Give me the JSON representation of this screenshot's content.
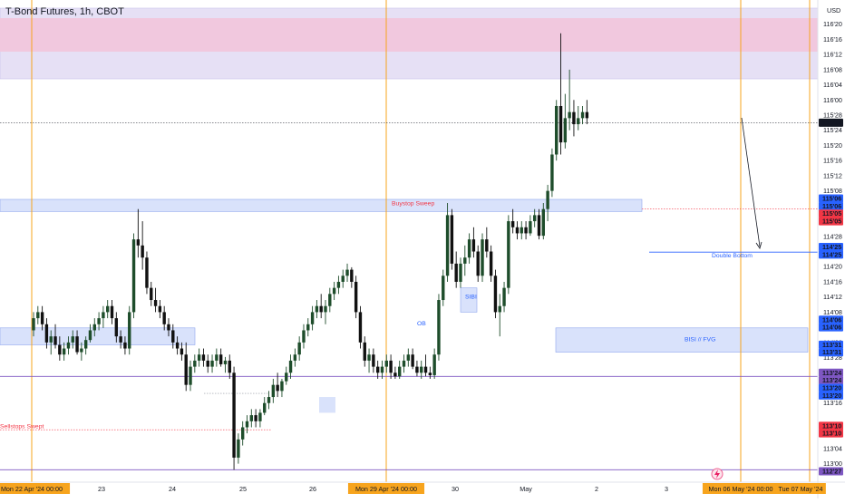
{
  "colors": {
    "up": "#1e4d2b",
    "down": "#111111",
    "session_line": "#f7a41d",
    "supply_zone_fill": "#f1c8de",
    "supply_zone_outer": "#e6e0f5",
    "blue_zone": "#d9e2fb",
    "blue_zone_edge": "#8fa6ee",
    "purple_line": "#7e57c2",
    "red_dotted": "#f23645",
    "label_blue": "#2962ff",
    "label_red": "#f23645",
    "label_purple": "#7e57c2",
    "label_black": "#131722",
    "x_label_orange": "#f7a41d"
  },
  "chart_data": {
    "type": "candlestick",
    "title": "T-Bond Futures, 1h, CBOT",
    "currency": "USD",
    "y_unit": "price in 32nds",
    "ylim": [
      112.9,
      116.675
    ],
    "y_ticks": [
      {
        "v": 116.625,
        "label": "116'20"
      },
      {
        "v": 116.5,
        "label": "116'16"
      },
      {
        "v": 116.375,
        "label": "116'12"
      },
      {
        "v": 116.25,
        "label": "116'08"
      },
      {
        "v": 116.125,
        "label": "116'04"
      },
      {
        "v": 116.0,
        "label": "116'00"
      },
      {
        "v": 115.875,
        "label": "115'28"
      },
      {
        "v": 115.75,
        "label": "115'24"
      },
      {
        "v": 115.625,
        "label": "115'20"
      },
      {
        "v": 115.5,
        "label": "115'16"
      },
      {
        "v": 115.375,
        "label": "115'12"
      },
      {
        "v": 115.25,
        "label": "115'08"
      },
      {
        "v": 114.875,
        "label": "114'28"
      },
      {
        "v": 114.625,
        "label": "114'20"
      },
      {
        "v": 114.5,
        "label": "114'16"
      },
      {
        "v": 114.375,
        "label": "114'12"
      },
      {
        "v": 114.25,
        "label": "114'08"
      },
      {
        "v": 114.0,
        "label": "114'00"
      },
      {
        "v": 113.875,
        "label": "113'28"
      },
      {
        "v": 113.5,
        "label": "113'16"
      },
      {
        "v": 113.25,
        "label": "113'08"
      },
      {
        "v": 113.125,
        "label": "113'04"
      },
      {
        "v": 113.0,
        "label": "113'00"
      }
    ],
    "price_labels": [
      {
        "v": 115.8125,
        "label": "115'26",
        "style": "black"
      },
      {
        "v": 115.1875,
        "label": "115'06",
        "style": "blue"
      },
      {
        "v": 115.125,
        "label": "115'06",
        "style": "blue"
      },
      {
        "v": 115.0625,
        "label": "115'05",
        "style": "red"
      },
      {
        "v": 115.0,
        "label": "115'05",
        "style": "red"
      },
      {
        "v": 114.7875,
        "label": "114'25",
        "style": "blue"
      },
      {
        "v": 114.725,
        "label": "114'25",
        "style": "blue"
      },
      {
        "v": 114.1875,
        "label": "114'06",
        "style": "blue"
      },
      {
        "v": 114.125,
        "label": "114'06",
        "style": "blue"
      },
      {
        "v": 113.9812,
        "label": "113'31",
        "style": "blue"
      },
      {
        "v": 113.9187,
        "label": "113'31",
        "style": "blue"
      },
      {
        "v": 113.75,
        "label": "113'24",
        "style": "purple"
      },
      {
        "v": 113.6875,
        "label": "113'24",
        "style": "purple"
      },
      {
        "v": 113.625,
        "label": "113'20",
        "style": "blue"
      },
      {
        "v": 113.5625,
        "label": "113'20",
        "style": "blue"
      },
      {
        "v": 113.3125,
        "label": "113'10",
        "style": "red"
      },
      {
        "v": 113.25,
        "label": "113'10",
        "style": "red"
      },
      {
        "v": 112.9375,
        "label": "112'27",
        "style": "purple"
      }
    ],
    "x_ticks": [
      {
        "label": "Mon 22 Apr '24   00:00",
        "x": 0,
        "highlight": true
      },
      {
        "label": "23",
        "x": 16
      },
      {
        "label": "24",
        "x": 32
      },
      {
        "label": "25",
        "x": 48
      },
      {
        "label": "26",
        "x": 64
      },
      {
        "label": "Mon 29 Apr '24   00:00",
        "x": 80,
        "highlight": true
      },
      {
        "label": "30",
        "x": 96
      },
      {
        "label": "May",
        "x": 112
      },
      {
        "label": "2",
        "x": 128
      },
      {
        "label": "3",
        "x": 144
      },
      {
        "label": "Mon 06 May '24   00:00",
        "x": 160,
        "highlight": true
      },
      {
        "label": "Tue 07 May '24",
        "x": 176,
        "highlight": true
      }
    ],
    "session_lines": [
      0,
      80,
      160,
      176
    ],
    "candles": [
      [
        114.1,
        114.25,
        114.05,
        114.2
      ],
      [
        114.2,
        114.3,
        114.15,
        114.25
      ],
      [
        114.25,
        114.3,
        114.1,
        114.15
      ],
      [
        114.15,
        114.2,
        113.95,
        114.0
      ],
      [
        114.0,
        114.1,
        113.9,
        114.05
      ],
      [
        114.05,
        114.15,
        113.95,
        113.98
      ],
      [
        113.98,
        114.05,
        113.85,
        113.9
      ],
      [
        113.9,
        114.0,
        113.85,
        113.95
      ],
      [
        113.95,
        114.05,
        113.9,
        114.0
      ],
      [
        114.0,
        114.1,
        113.95,
        114.05
      ],
      [
        114.05,
        114.1,
        113.9,
        113.92
      ],
      [
        113.92,
        114.0,
        113.85,
        113.95
      ],
      [
        113.95,
        114.05,
        113.9,
        114.02
      ],
      [
        114.02,
        114.15,
        114.0,
        114.1
      ],
      [
        114.1,
        114.2,
        114.05,
        114.15
      ],
      [
        114.15,
        114.25,
        114.1,
        114.2
      ],
      [
        114.2,
        114.3,
        114.12,
        114.25
      ],
      [
        114.25,
        114.35,
        114.2,
        114.3
      ],
      [
        114.3,
        114.35,
        114.15,
        114.2
      ],
      [
        114.2,
        114.25,
        114.0,
        114.05
      ],
      [
        114.05,
        114.1,
        113.95,
        114.0
      ],
      [
        114.0,
        114.05,
        113.9,
        113.95
      ],
      [
        113.95,
        114.3,
        113.9,
        114.25
      ],
      [
        114.25,
        114.9,
        114.2,
        114.85
      ],
      [
        114.85,
        115.1,
        114.7,
        114.8
      ],
      [
        114.8,
        115.0,
        114.6,
        114.7
      ],
      [
        114.7,
        114.75,
        114.4,
        114.45
      ],
      [
        114.45,
        114.5,
        114.3,
        114.35
      ],
      [
        114.35,
        114.45,
        114.25,
        114.3
      ],
      [
        114.3,
        114.35,
        114.2,
        114.25
      ],
      [
        114.25,
        114.3,
        114.1,
        114.15
      ],
      [
        114.15,
        114.2,
        114.05,
        114.1
      ],
      [
        114.1,
        114.15,
        113.95,
        114.0
      ],
      [
        114.0,
        114.05,
        113.9,
        113.95
      ],
      [
        113.95,
        114.0,
        113.85,
        113.9
      ],
      [
        113.9,
        114.0,
        113.6,
        113.65
      ],
      [
        113.65,
        113.85,
        113.6,
        113.8
      ],
      [
        113.8,
        113.9,
        113.75,
        113.85
      ],
      [
        113.85,
        113.95,
        113.8,
        113.9
      ],
      [
        113.9,
        113.95,
        113.8,
        113.85
      ],
      [
        113.85,
        113.9,
        113.75,
        113.8
      ],
      [
        113.8,
        113.9,
        113.75,
        113.85
      ],
      [
        113.85,
        113.95,
        113.8,
        113.9
      ],
      [
        113.9,
        113.95,
        113.8,
        113.82
      ],
      [
        113.82,
        113.88,
        113.75,
        113.85
      ],
      [
        113.85,
        113.9,
        113.7,
        113.75
      ],
      [
        113.75,
        113.8,
        112.95,
        113.05
      ],
      [
        113.05,
        113.25,
        113.0,
        113.2
      ],
      [
        113.2,
        113.35,
        113.15,
        113.3
      ],
      [
        113.3,
        113.4,
        113.25,
        113.35
      ],
      [
        113.35,
        113.45,
        113.3,
        113.4
      ],
      [
        113.4,
        113.45,
        113.3,
        113.35
      ],
      [
        113.35,
        113.45,
        113.3,
        113.42
      ],
      [
        113.42,
        113.55,
        113.4,
        113.5
      ],
      [
        113.5,
        113.6,
        113.45,
        113.55
      ],
      [
        113.55,
        113.7,
        113.5,
        113.65
      ],
      [
        113.65,
        113.75,
        113.55,
        113.6
      ],
      [
        113.6,
        113.7,
        113.55,
        113.68
      ],
      [
        113.68,
        113.8,
        113.65,
        113.75
      ],
      [
        113.75,
        113.9,
        113.7,
        113.85
      ],
      [
        113.85,
        113.95,
        113.8,
        113.9
      ],
      [
        113.9,
        114.05,
        113.85,
        114.0
      ],
      [
        114.0,
        114.15,
        113.95,
        114.1
      ],
      [
        114.1,
        114.2,
        114.05,
        114.15
      ],
      [
        114.15,
        114.3,
        114.1,
        114.25
      ],
      [
        114.25,
        114.35,
        114.2,
        114.3
      ],
      [
        114.3,
        114.4,
        114.2,
        114.25
      ],
      [
        114.25,
        114.35,
        114.15,
        114.3
      ],
      [
        114.3,
        114.45,
        114.25,
        114.4
      ],
      [
        114.4,
        114.5,
        114.35,
        114.45
      ],
      [
        114.45,
        114.55,
        114.4,
        114.5
      ],
      [
        114.5,
        114.6,
        114.45,
        114.55
      ],
      [
        114.55,
        114.65,
        114.5,
        114.6
      ],
      [
        114.6,
        114.62,
        114.45,
        114.5
      ],
      [
        114.5,
        114.55,
        114.2,
        114.25
      ],
      [
        114.25,
        114.3,
        113.95,
        114.0
      ],
      [
        114.0,
        114.05,
        113.8,
        113.85
      ],
      [
        113.85,
        113.95,
        113.75,
        113.9
      ],
      [
        113.9,
        113.95,
        113.75,
        113.8
      ],
      [
        113.8,
        113.85,
        113.7,
        113.75
      ],
      [
        113.75,
        113.85,
        113.7,
        113.8
      ],
      [
        113.8,
        113.9,
        113.75,
        113.85
      ],
      [
        113.85,
        113.9,
        113.7,
        113.75
      ],
      [
        113.75,
        113.8,
        113.7,
        113.72
      ],
      [
        113.72,
        113.85,
        113.7,
        113.8
      ],
      [
        113.8,
        113.9,
        113.75,
        113.85
      ],
      [
        113.85,
        113.95,
        113.8,
        113.9
      ],
      [
        113.9,
        113.95,
        113.78,
        113.8
      ],
      [
        113.8,
        113.85,
        113.72,
        113.75
      ],
      [
        113.75,
        113.85,
        113.7,
        113.8
      ],
      [
        113.8,
        113.9,
        113.72,
        113.75
      ],
      [
        113.75,
        113.8,
        113.7,
        113.73
      ],
      [
        113.73,
        113.95,
        113.7,
        113.9
      ],
      [
        113.9,
        114.4,
        113.85,
        114.35
      ],
      [
        114.35,
        114.6,
        114.3,
        114.55
      ],
      [
        114.55,
        115.15,
        114.5,
        115.05
      ],
      [
        115.05,
        115.1,
        114.6,
        114.65
      ],
      [
        114.65,
        114.75,
        114.45,
        114.5
      ],
      [
        114.5,
        114.7,
        114.45,
        114.65
      ],
      [
        114.65,
        114.8,
        114.55,
        114.7
      ],
      [
        114.7,
        114.9,
        114.65,
        114.85
      ],
      [
        114.85,
        114.95,
        114.7,
        114.75
      ],
      [
        114.75,
        114.8,
        114.5,
        114.55
      ],
      [
        114.55,
        114.9,
        114.5,
        114.85
      ],
      [
        114.85,
        114.95,
        114.7,
        114.75
      ],
      [
        114.75,
        114.8,
        114.5,
        114.55
      ],
      [
        114.55,
        114.6,
        114.2,
        114.25
      ],
      [
        114.25,
        114.4,
        114.05,
        114.3
      ],
      [
        114.3,
        114.5,
        114.25,
        114.45
      ],
      [
        114.45,
        115.05,
        114.4,
        115.0
      ],
      [
        115.0,
        115.1,
        114.9,
        114.95
      ],
      [
        114.95,
        115.0,
        114.85,
        114.9
      ],
      [
        114.9,
        115.0,
        114.85,
        114.95
      ],
      [
        114.95,
        115.0,
        114.85,
        114.9
      ],
      [
        114.9,
        115.05,
        114.88,
        115.0
      ],
      [
        115.0,
        115.1,
        114.95,
        115.05
      ],
      [
        115.05,
        115.1,
        114.85,
        114.88
      ],
      [
        114.88,
        115.15,
        114.85,
        115.1
      ],
      [
        115.1,
        115.3,
        115.0,
        115.25
      ],
      [
        115.25,
        115.6,
        115.2,
        115.55
      ],
      [
        115.55,
        116.0,
        115.5,
        115.95
      ],
      [
        115.95,
        116.55,
        115.55,
        115.65
      ],
      [
        115.65,
        116.05,
        115.6,
        115.85
      ],
      [
        115.85,
        116.25,
        115.75,
        115.9
      ],
      [
        115.9,
        116.0,
        115.7,
        115.8
      ],
      [
        115.8,
        115.95,
        115.75,
        115.85
      ],
      [
        115.85,
        115.95,
        115.8,
        115.9
      ],
      [
        115.9,
        116.0,
        115.8,
        115.85
      ]
    ],
    "annotations": [
      {
        "text": "Buystop Sweep",
        "color": "red",
        "x": 47,
        "v": 115.15
      },
      {
        "text": "Double Bottom",
        "color": "blue",
        "x": 180,
        "v": 114.72
      },
      {
        "text": "SIBI",
        "color": "blue",
        "x": 106,
        "v": 114.38
      },
      {
        "text": "OB",
        "color": "blue",
        "x": 94,
        "v": 114.16
      },
      {
        "text": "BISI  //  FVG",
        "color": "blue",
        "x": 167,
        "v": 114.03
      },
      {
        "text": "Sellstops Swept",
        "color": "red",
        "x": -1,
        "v": 113.31
      }
    ]
  }
}
